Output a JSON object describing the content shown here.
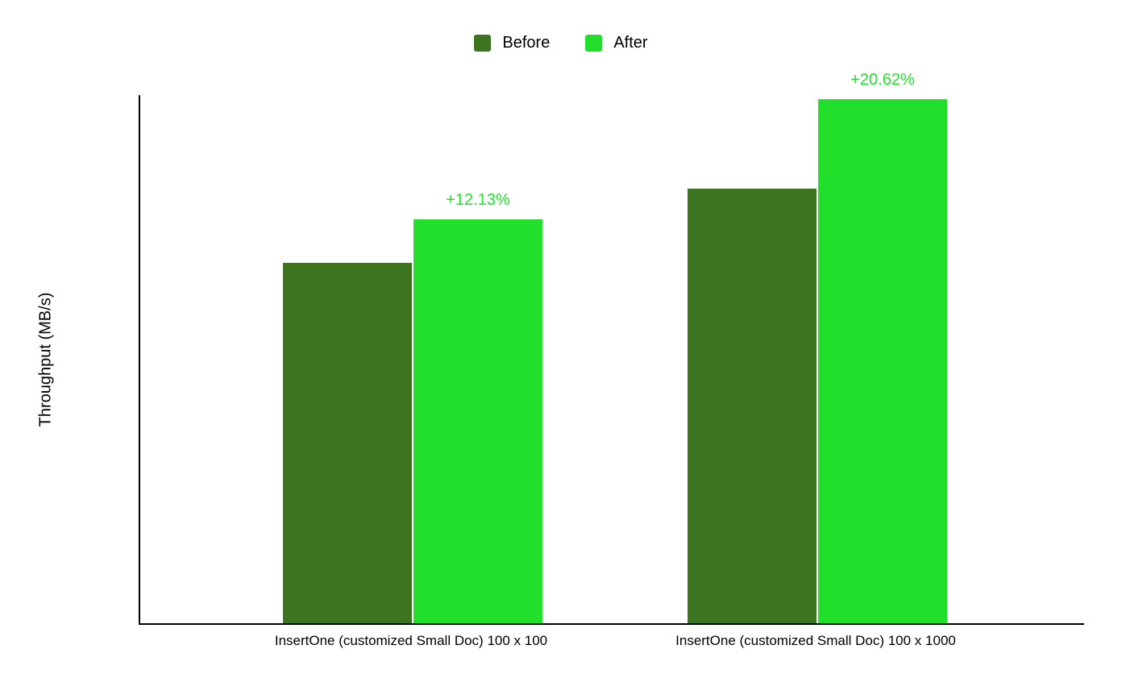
{
  "chart_data": {
    "type": "bar",
    "categories": [
      "InsertOne (customized Small Doc) 100 x 100",
      "InsertOne (customized Small Doc) 100 x 1000"
    ],
    "series": [
      {
        "name": "Before",
        "color": "#3d741f",
        "values": [
          100.0,
          120.6
        ]
      },
      {
        "name": "After",
        "color": "#22df2c",
        "values": [
          112.13,
          145.47
        ]
      }
    ],
    "annotations": [
      "+12.13%",
      "+20.62%"
    ],
    "annotation_color": "#22df2c",
    "title": "",
    "xlabel": "",
    "ylabel": "Throughput (MB/s)",
    "ylim": [
      0,
      146.6
    ],
    "y_tick_labels": [],
    "grid": false,
    "legend_position": "top",
    "value_units": "relative (no axis tick labels shown; Before of first group = 100)"
  }
}
